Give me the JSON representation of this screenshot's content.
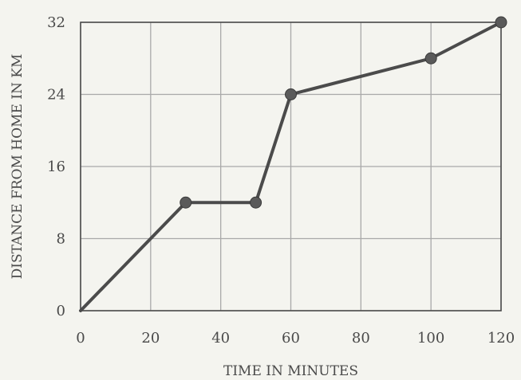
{
  "chart_data": {
    "type": "line",
    "title": "",
    "xlabel": "TIME IN MINUTES",
    "ylabel": "DISTANCE FROM HOME IN KM",
    "xlim": [
      0,
      120
    ],
    "ylim": [
      0,
      32
    ],
    "x_ticks": [
      "0",
      "20",
      "40",
      "60",
      "80",
      "100",
      "120"
    ],
    "y_ticks": [
      "0",
      "8",
      "16",
      "24",
      "32"
    ],
    "x_tick_values": [
      0,
      20,
      40,
      60,
      80,
      100,
      120
    ],
    "y_tick_values": [
      0,
      8,
      16,
      24,
      32
    ],
    "grid": true,
    "series": [
      {
        "x": [
          0,
          30,
          50,
          60,
          100,
          120
        ],
        "y": [
          0,
          12,
          12,
          24,
          28,
          32
        ],
        "markers": [
          false,
          true,
          true,
          true,
          true,
          true
        ]
      }
    ],
    "colors": {
      "background": "#f4f4ef",
      "grid": "#a9a9a9",
      "line": "#4b4b4b",
      "marker": "#5a5a5a",
      "text": "#4a4a4a"
    }
  }
}
